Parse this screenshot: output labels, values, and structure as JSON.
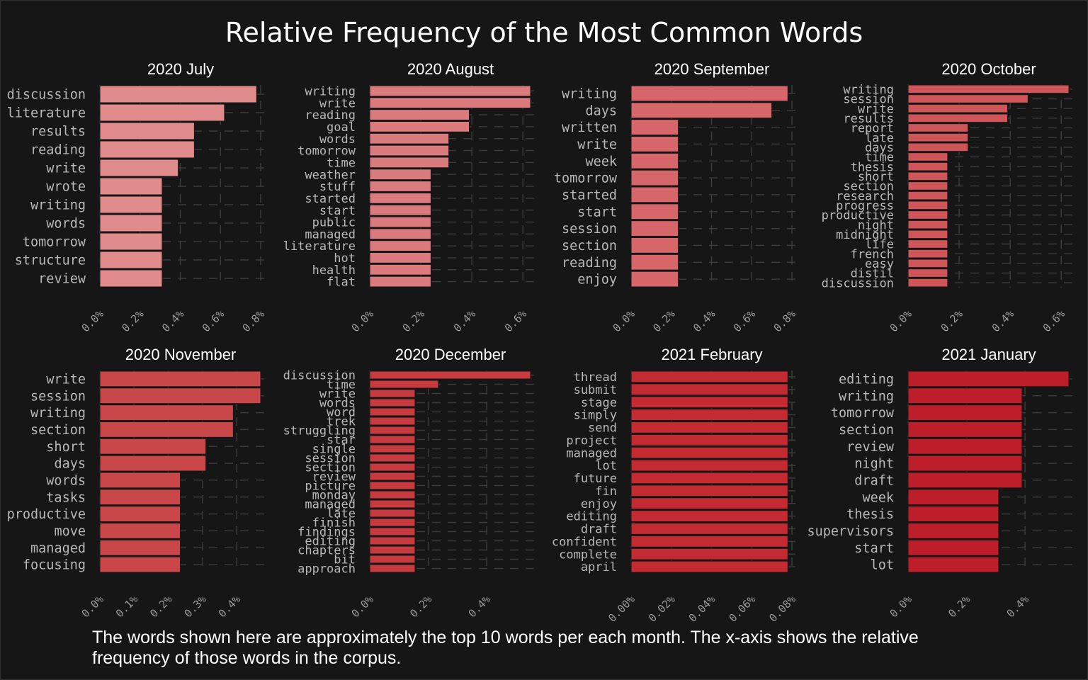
{
  "title": "Relative Frequency of the Most Common Words",
  "caption": "The words shown here are approximately the top 10 words per each month. The x-axis shows the relative frequency of those words in the corpus.",
  "chart_data": [
    {
      "type": "bar",
      "orientation": "horizontal",
      "title": "2020 July",
      "color": "#e08c8c",
      "categories": [
        "discussion",
        "literature",
        "results",
        "reading",
        "write",
        "wrote",
        "writing",
        "words",
        "tomorrow",
        "structure",
        "review"
      ],
      "values": [
        0.78,
        0.62,
        0.47,
        0.47,
        0.39,
        0.31,
        0.31,
        0.31,
        0.31,
        0.31,
        0.31
      ],
      "xlim": [
        0,
        0.8
      ],
      "ticks": [
        0,
        0.2,
        0.4,
        0.6,
        0.8
      ],
      "tick_labels": [
        "0.0%",
        "0.2%",
        "0.4%",
        "0.6%",
        "0.8%"
      ],
      "xlabel": "",
      "ylabel": ""
    },
    {
      "type": "bar",
      "orientation": "horizontal",
      "title": "2020 August",
      "color": "#dc7b7d",
      "categories": [
        "writing",
        "write",
        "reading",
        "goal",
        "words",
        "tomorrow",
        "time",
        "weather",
        "stuff",
        "started",
        "start",
        "public",
        "managed",
        "literature",
        "hot",
        "health",
        "flat"
      ],
      "values": [
        0.63,
        0.63,
        0.39,
        0.39,
        0.31,
        0.31,
        0.31,
        0.24,
        0.24,
        0.24,
        0.24,
        0.24,
        0.24,
        0.24,
        0.24,
        0.24,
        0.24
      ],
      "xlim": [
        0,
        0.63
      ],
      "ticks": [
        0,
        0.2,
        0.4,
        0.6
      ],
      "tick_labels": [
        "0.0%",
        "0.2%",
        "0.4%",
        "0.6%"
      ],
      "xlabel": "",
      "ylabel": ""
    },
    {
      "type": "bar",
      "orientation": "horizontal",
      "title": "2020 September",
      "color": "#d6666a",
      "categories": [
        "writing",
        "days",
        "written",
        "write",
        "week",
        "tomorrow",
        "started",
        "start",
        "session",
        "section",
        "reading",
        "enjoy"
      ],
      "values": [
        0.78,
        0.7,
        0.235,
        0.235,
        0.235,
        0.235,
        0.235,
        0.235,
        0.235,
        0.235,
        0.235,
        0.235
      ],
      "xlim": [
        0,
        0.8
      ],
      "ticks": [
        0,
        0.2,
        0.4,
        0.6,
        0.8
      ],
      "tick_labels": [
        "0.0%",
        "0.2%",
        "0.4%",
        "0.6%",
        "0.8%"
      ],
      "xlabel": "",
      "ylabel": ""
    },
    {
      "type": "bar",
      "orientation": "horizontal",
      "title": "2020 October",
      "color": "#d05558",
      "categories": [
        "writing",
        "session",
        "write",
        "results",
        "report",
        "late",
        "days",
        "time",
        "thesis",
        "short",
        "section",
        "research",
        "progress",
        "productive",
        "night",
        "midnight",
        "life",
        "french",
        "easy",
        "distil",
        "discussion"
      ],
      "values": [
        0.63,
        0.47,
        0.39,
        0.39,
        0.235,
        0.235,
        0.235,
        0.155,
        0.155,
        0.155,
        0.155,
        0.155,
        0.155,
        0.155,
        0.155,
        0.155,
        0.155,
        0.155,
        0.155,
        0.155,
        0.155
      ],
      "xlim": [
        0,
        0.63
      ],
      "ticks": [
        0,
        0.2,
        0.4,
        0.6
      ],
      "tick_labels": [
        "0.0%",
        "0.2%",
        "0.4%",
        "0.6%"
      ],
      "xlabel": "",
      "ylabel": ""
    },
    {
      "type": "bar",
      "orientation": "horizontal",
      "title": "2020 November",
      "color": "#c94649",
      "categories": [
        "write",
        "session",
        "writing",
        "section",
        "short",
        "days",
        "words",
        "tasks",
        "productive",
        "move",
        "managed",
        "focusing"
      ],
      "values": [
        0.47,
        0.47,
        0.39,
        0.39,
        0.31,
        0.31,
        0.235,
        0.235,
        0.235,
        0.235,
        0.235,
        0.235
      ],
      "xlim": [
        0,
        0.47
      ],
      "ticks": [
        0,
        0.1,
        0.2,
        0.3,
        0.4
      ],
      "tick_labels": [
        "0.0%",
        "0.1%",
        "0.2%",
        "0.3%",
        "0.4%"
      ],
      "xlabel": "",
      "ylabel": ""
    },
    {
      "type": "bar",
      "orientation": "horizontal",
      "title": "2020 December",
      "color": "#c73a3f",
      "categories": [
        "discussion",
        "time",
        "write",
        "words",
        "word",
        "trek",
        "struggling",
        "star",
        "single",
        "session",
        "section",
        "review",
        "picture",
        "monday",
        "managed",
        "late",
        "finish",
        "findings",
        "editing",
        "chapters",
        "bit",
        "approach"
      ],
      "values": [
        0.55,
        0.235,
        0.155,
        0.155,
        0.155,
        0.155,
        0.155,
        0.155,
        0.155,
        0.155,
        0.155,
        0.155,
        0.155,
        0.155,
        0.155,
        0.155,
        0.155,
        0.155,
        0.155,
        0.155,
        0.155,
        0.155
      ],
      "xlim": [
        0,
        0.55
      ],
      "ticks": [
        0,
        0.2,
        0.4
      ],
      "tick_labels": [
        "0.0%",
        "0.2%",
        "0.4%"
      ],
      "xlabel": "",
      "ylabel": ""
    },
    {
      "type": "bar",
      "orientation": "horizontal",
      "title": "2021 February",
      "color": "#c32a32",
      "categories": [
        "thread",
        "submit",
        "stage",
        "simply",
        "send",
        "project",
        "managed",
        "lot",
        "future",
        "fin",
        "enjoy",
        "editing",
        "draft",
        "confident",
        "complete",
        "april"
      ],
      "values": [
        0.078,
        0.078,
        0.078,
        0.078,
        0.078,
        0.078,
        0.078,
        0.078,
        0.078,
        0.078,
        0.078,
        0.078,
        0.078,
        0.078,
        0.078,
        0.078
      ],
      "xlim": [
        0,
        0.08
      ],
      "ticks": [
        0,
        0.02,
        0.04,
        0.06,
        0.08
      ],
      "tick_labels": [
        "0.00%",
        "0.02%",
        "0.04%",
        "0.06%",
        "0.08%"
      ],
      "xlabel": "",
      "ylabel": ""
    },
    {
      "type": "bar",
      "orientation": "horizontal",
      "title": "2021 January",
      "color": "#be1e2a",
      "categories": [
        "editing",
        "writing",
        "tomorrow",
        "section",
        "review",
        "night",
        "draft",
        "week",
        "thesis",
        "supervisors",
        "start",
        "lot"
      ],
      "values": [
        0.55,
        0.39,
        0.39,
        0.39,
        0.39,
        0.39,
        0.39,
        0.31,
        0.31,
        0.31,
        0.31,
        0.31
      ],
      "xlim": [
        0,
        0.55
      ],
      "ticks": [
        0,
        0.2,
        0.4
      ],
      "tick_labels": [
        "0.0%",
        "0.2%",
        "0.4%"
      ],
      "xlabel": "",
      "ylabel": ""
    }
  ]
}
